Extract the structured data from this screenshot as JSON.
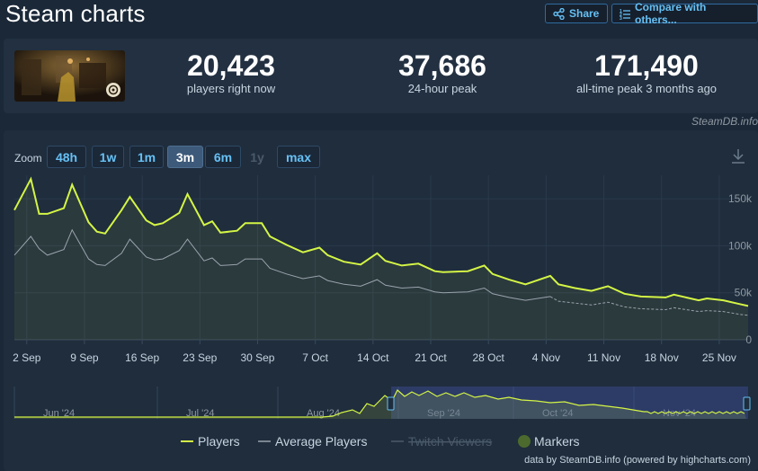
{
  "header": {
    "title": "Steam charts",
    "share_label": "Share",
    "compare_label": "Compare with others..."
  },
  "stats": {
    "current": {
      "value": "20,423",
      "label": "players right now"
    },
    "peak24": {
      "value": "37,686",
      "label": "24-hour peak"
    },
    "alltime": {
      "value": "171,490",
      "label": "all-time peak 3 months ago"
    }
  },
  "watermark": "SteamDB.info",
  "zoom": {
    "label": "Zoom",
    "options": [
      "48h",
      "1w",
      "1m",
      "3m",
      "6m",
      "1y",
      "max"
    ],
    "active": "3m",
    "disabled": [
      "1y"
    ]
  },
  "legend": {
    "players": "Players",
    "average": "Average Players",
    "twitch": "Twitch Viewers",
    "markers": "Markers"
  },
  "footer": "data by SteamDB.info (powered by highcharts.com)",
  "colors": {
    "players": "#d4f545",
    "average": "#9aa3ad",
    "accent": "#66c0f4",
    "background": "#1b2838"
  },
  "icons": {
    "share": "share-icon",
    "compare": "compare-icon",
    "download": "download-icon"
  },
  "chart_data": {
    "type": "line",
    "title": "",
    "ylim": [
      0,
      175000
    ],
    "y_ticks": [
      0,
      50000,
      100000,
      150000
    ],
    "y_tick_labels": [
      "0",
      "50k",
      "100k",
      "150k"
    ],
    "x_tick_labels": [
      "2 Sep",
      "9 Sep",
      "16 Sep",
      "23 Sep",
      "30 Sep",
      "7 Oct",
      "14 Oct",
      "21 Oct",
      "28 Oct",
      "4 Nov",
      "11 Nov",
      "18 Nov",
      "25 Nov"
    ],
    "x_tick_days": [
      2,
      9,
      16,
      23,
      30,
      37,
      44,
      51,
      58,
      65,
      72,
      79,
      86
    ],
    "x": [
      0,
      2,
      3,
      4,
      6,
      7,
      9,
      10,
      11,
      13,
      14,
      16,
      17,
      18,
      20,
      21,
      23,
      24,
      25,
      27,
      28,
      30,
      31,
      33,
      35,
      37,
      38,
      40,
      42,
      44,
      45,
      47,
      49,
      51,
      52,
      55,
      57,
      58,
      60,
      62,
      65,
      66,
      68,
      70,
      72,
      74,
      76,
      79,
      80,
      83,
      84,
      86,
      88,
      89
    ],
    "series": [
      {
        "name": "Players",
        "values": [
          138000,
          171000,
          134000,
          134000,
          140000,
          165000,
          125000,
          115000,
          113000,
          138000,
          152000,
          127000,
          122000,
          124000,
          135000,
          155000,
          122000,
          126000,
          114000,
          116000,
          124000,
          124000,
          110000,
          101000,
          93000,
          98000,
          90000,
          83000,
          80000,
          92000,
          84000,
          79000,
          81000,
          73000,
          72000,
          73000,
          79000,
          70000,
          64000,
          59000,
          68000,
          59000,
          55000,
          52000,
          57000,
          49000,
          46000,
          45000,
          48000,
          42000,
          44000,
          42000,
          38000,
          36000
        ]
      },
      {
        "name": "Average Players",
        "values": [
          90000,
          110000,
          97000,
          90000,
          96000,
          117000,
          86000,
          80000,
          79000,
          92000,
          107000,
          88000,
          85000,
          86000,
          95000,
          107000,
          84000,
          87000,
          79000,
          80000,
          86000,
          86000,
          76000,
          70000,
          65000,
          68000,
          63000,
          59000,
          57000,
          64000,
          58000,
          55000,
          56000,
          51000,
          50000,
          51000,
          55000,
          49000,
          45000,
          42000,
          46000,
          41000,
          39000,
          37000,
          40000,
          35000,
          33000,
          32000,
          34000,
          30000,
          31000,
          30000,
          27000,
          26000
        ]
      }
    ],
    "navigator": {
      "x_tick_labels": [
        "Jun '24",
        "Jul '24",
        "Aug '24",
        "Sep '24",
        "Oct '24",
        "Nov '24"
      ]
    }
  }
}
